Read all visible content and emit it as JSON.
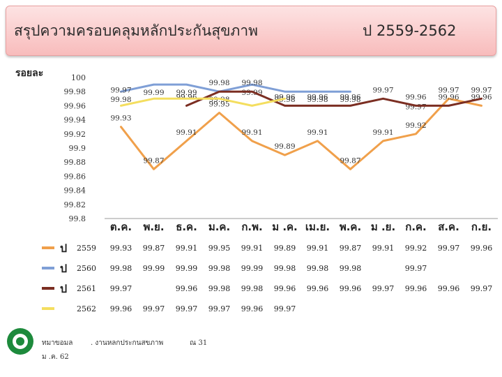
{
  "header": {
    "title": "สรุปความครอบคลุมหลักประกันสุขภาพ",
    "years": "ป   2559-2562"
  },
  "footer": {
    "source_a": "ทมาขอมล",
    "source_b": "ม .ค. 62",
    "source_c": ". งานหลกประกนสขภาพ",
    "source_d": "ณ 31"
  },
  "chart_data": {
    "type": "line",
    "ylabel": "รอยละ",
    "ylim": [
      99.8,
      100
    ],
    "yticks": [
      "100",
      "99.98",
      "99.96",
      "99.94",
      "99.92",
      "99.9",
      "99.88",
      "99.86",
      "99.84",
      "99.82",
      "99.8"
    ],
    "categories": [
      "ต.ค.",
      "พ.ย.",
      "ธ.ค.",
      "ม.ค.",
      "ก.พ.",
      "ม .ค.",
      "เม.ย.",
      "พ.ค.",
      "ม .ย.",
      "ก.ค.",
      "ส.ค.",
      "ก.ย."
    ],
    "series": [
      {
        "name": "2559",
        "prefix": "ป",
        "color": "#f0a04b",
        "values": [
          99.93,
          99.87,
          99.91,
          99.95,
          99.91,
          99.89,
          99.91,
          99.87,
          99.91,
          99.92,
          99.97,
          99.96
        ]
      },
      {
        "name": "2560",
        "prefix": "ป",
        "color": "#7f9fd6",
        "values": [
          99.98,
          99.99,
          99.99,
          99.98,
          99.99,
          99.98,
          99.98,
          99.98,
          null,
          99.97,
          null,
          null
        ]
      },
      {
        "name": "2561",
        "prefix": "ป",
        "color": "#7b2e22",
        "values": [
          99.97,
          null,
          99.96,
          99.98,
          99.98,
          99.96,
          99.96,
          99.96,
          99.97,
          99.96,
          99.96,
          99.97
        ]
      },
      {
        "name": "2562",
        "prefix": "",
        "color": "#f4de5f",
        "values": [
          99.96,
          99.97,
          99.97,
          99.97,
          99.96,
          99.97,
          null,
          null,
          null,
          null,
          null,
          null
        ]
      }
    ]
  }
}
